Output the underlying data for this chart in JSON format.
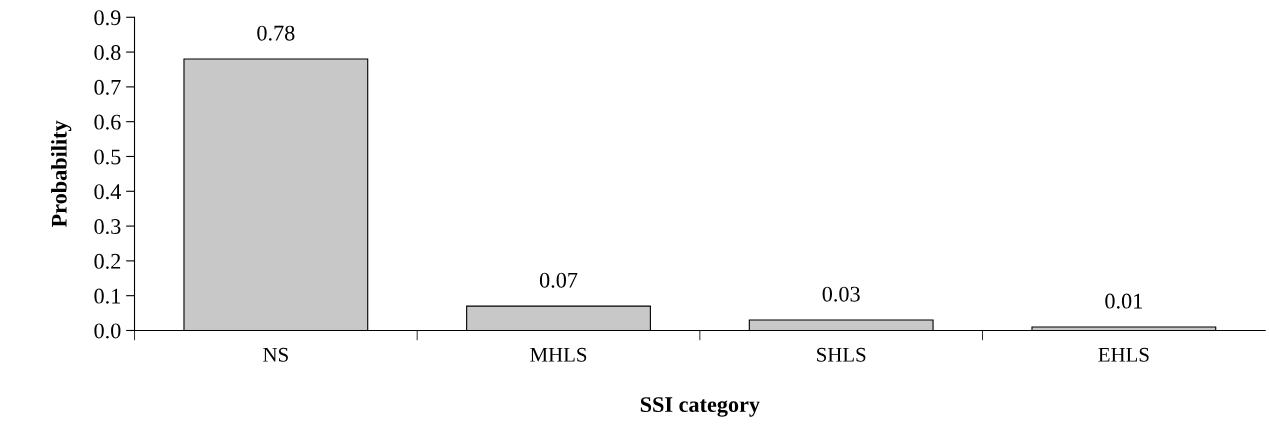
{
  "chart_data": {
    "type": "bar",
    "xlabel": "SSI category",
    "ylabel": "Probability",
    "categories": [
      "NS",
      "MHLS",
      "SHLS",
      "EHLS"
    ],
    "values": [
      0.78,
      0.07,
      0.03,
      0.01
    ],
    "color": "#c8c8c8",
    "data_labels": true,
    "ylim": [
      0,
      0.9
    ],
    "yticks": [
      {
        "value": 0,
        "label": "0.0"
      },
      0.1,
      0.2,
      0.3,
      0.4,
      0.5,
      0.6,
      0.7,
      0.8,
      0.9
    ],
    "grid": false
  }
}
